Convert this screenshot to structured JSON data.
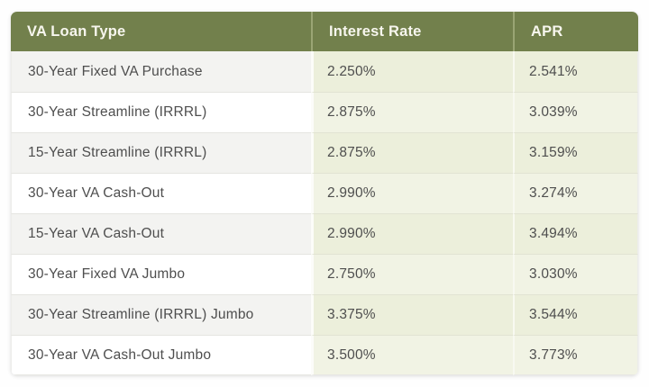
{
  "table": {
    "columns": [
      {
        "label": "VA Loan Type"
      },
      {
        "label": "Interest Rate"
      },
      {
        "label": "APR"
      }
    ],
    "rows": [
      {
        "loan_type": "30-Year Fixed VA Purchase",
        "interest_rate": "2.250%",
        "apr": "2.541%"
      },
      {
        "loan_type": "30-Year Streamline (IRRRL)",
        "interest_rate": "2.875%",
        "apr": "3.039%"
      },
      {
        "loan_type": "15-Year Streamline (IRRRL)",
        "interest_rate": "2.875%",
        "apr": "3.159%"
      },
      {
        "loan_type": "30-Year VA Cash-Out",
        "interest_rate": "2.990%",
        "apr": "3.274%"
      },
      {
        "loan_type": "15-Year VA Cash-Out",
        "interest_rate": "2.990%",
        "apr": "3.494%"
      },
      {
        "loan_type": "30-Year Fixed VA Jumbo",
        "interest_rate": "2.750%",
        "apr": "3.030%"
      },
      {
        "loan_type": "30-Year Streamline (IRRRL) Jumbo",
        "interest_rate": "3.375%",
        "apr": "3.544%"
      },
      {
        "loan_type": "30-Year VA Cash-Out Jumbo",
        "interest_rate": "3.500%",
        "apr": "3.773%"
      }
    ]
  },
  "colors": {
    "header_bg": "#72804c",
    "header_text": "#f7f6ee",
    "row_bg": "#ffffff",
    "row_alt_bg": "#f3f3f1",
    "rate_cell_bg": "#f1f3e4",
    "rate_cell_alt_bg": "#ecefdb",
    "cell_text": "#4e4e4e"
  },
  "chart_data": {
    "type": "table",
    "title": "",
    "columns": [
      "VA Loan Type",
      "Interest Rate",
      "APR"
    ],
    "rows": [
      [
        "30-Year Fixed VA Purchase",
        "2.250%",
        "2.541%"
      ],
      [
        "30-Year Streamline (IRRRL)",
        "2.875%",
        "3.039%"
      ],
      [
        "15-Year Streamline (IRRRL)",
        "2.875%",
        "3.159%"
      ],
      [
        "30-Year VA Cash-Out",
        "2.990%",
        "3.274%"
      ],
      [
        "15-Year VA Cash-Out",
        "2.990%",
        "3.494%"
      ],
      [
        "30-Year Fixed VA Jumbo",
        "2.750%",
        "3.030%"
      ],
      [
        "30-Year Streamline (IRRRL) Jumbo",
        "3.375%",
        "3.544%"
      ],
      [
        "30-Year VA Cash-Out Jumbo",
        "3.500%",
        "3.773%"
      ]
    ]
  }
}
